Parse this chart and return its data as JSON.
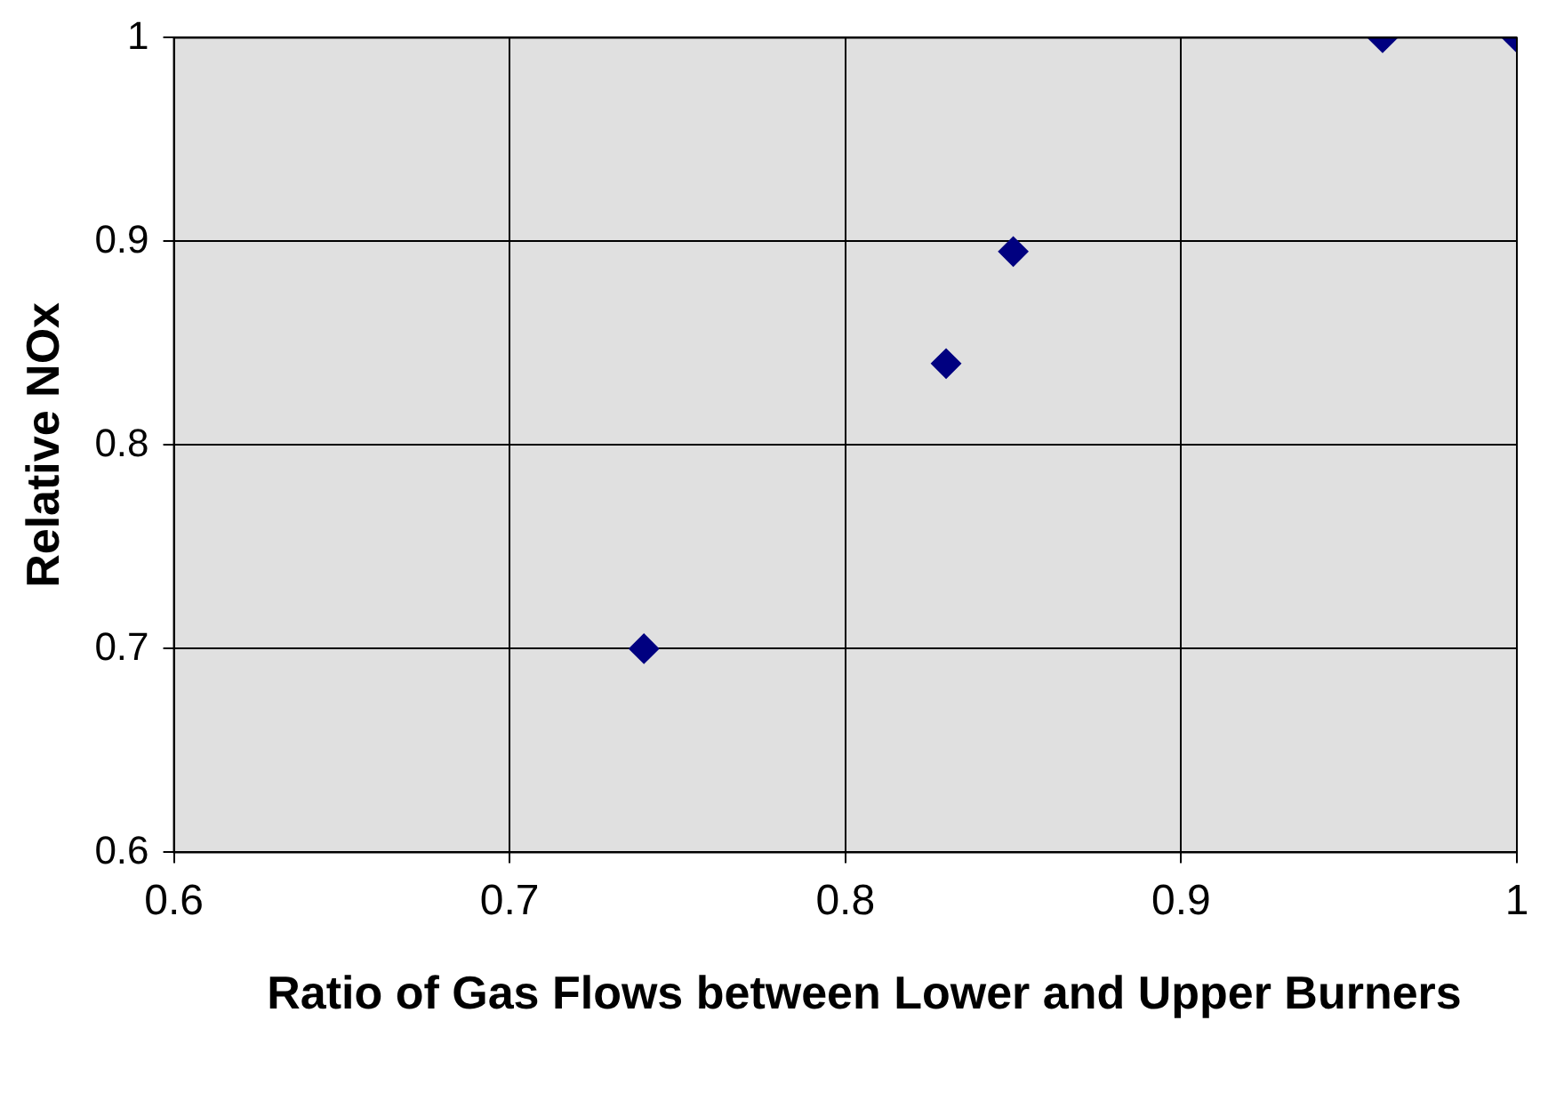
{
  "chart_data": {
    "type": "scatter",
    "xlabel": "Ratio of Gas Flows between Lower and Upper Burners",
    "ylabel": "Relative NOx",
    "x": [
      0.74,
      0.83,
      0.85,
      0.96,
      1.0
    ],
    "series": [
      {
        "color": "#000080",
        "values": [
          0.7,
          0.84,
          0.895,
          1.0,
          1.0
        ]
      }
    ],
    "xlim": [
      0.6,
      1.0
    ],
    "xticks": [
      0.6,
      0.7,
      0.8,
      0.9,
      1
    ],
    "ylim": [
      0.6,
      1.0
    ],
    "yticks": [
      0.6,
      0.7,
      0.8,
      0.9,
      1
    ],
    "grid": true,
    "legend": false,
    "marker": "diamond"
  }
}
